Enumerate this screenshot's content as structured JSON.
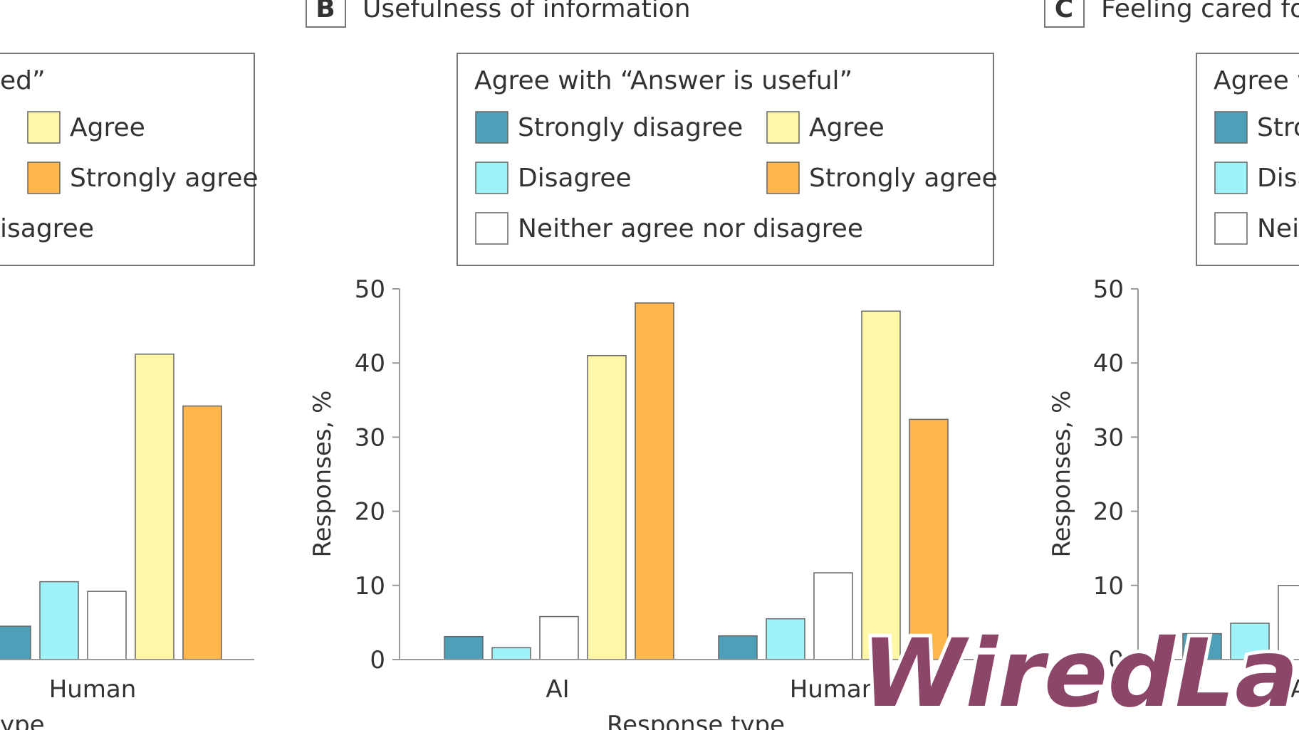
{
  "colors": {
    "strongly_disagree": "#4e9fb7",
    "disagree": "#9ff1fa",
    "neither": "#ffffff",
    "agree": "#fff7a7",
    "strongly_agree": "#ffb74d",
    "watermark": "#8b4668"
  },
  "watermark": {
    "text": "WiredLabz"
  },
  "chart_data": [
    {
      "type": "bar",
      "panel": "A",
      "title": "",
      "legend_title_fragment": "ed”",
      "legend_entries": [
        "Agree",
        "Strongly agree",
        "isagree"
      ],
      "categories": [
        "Human"
      ],
      "xlabel": "ype",
      "ylabel": "",
      "ylim": [
        0,
        50
      ],
      "series": [
        {
          "name": "Strongly disagree",
          "values": [
            4.5
          ]
        },
        {
          "name": "Disagree",
          "values": [
            10.5
          ]
        },
        {
          "name": "Neither agree nor disagree",
          "values": [
            9.2
          ]
        },
        {
          "name": "Agree",
          "values": [
            41.2
          ]
        },
        {
          "name": "Strongly agree",
          "values": [
            34.2
          ]
        }
      ]
    },
    {
      "type": "bar",
      "panel": "B",
      "title": "Usefulness of information",
      "legend_title": "Agree with “Answer is useful”",
      "legend_entries": [
        "Strongly disagree",
        "Agree",
        "Disagree",
        "Strongly agree",
        "Neither agree nor disagree"
      ],
      "categories": [
        "AI",
        "Human"
      ],
      "xlabel": "Response type",
      "ylabel": "Responses, %",
      "ylim": [
        0,
        50
      ],
      "yticks": [
        "0",
        "10",
        "20",
        "30",
        "40",
        "50"
      ],
      "series": [
        {
          "name": "Strongly disagree",
          "values": [
            3.1,
            3.2
          ]
        },
        {
          "name": "Disagree",
          "values": [
            1.6,
            5.5
          ]
        },
        {
          "name": "Neither agree nor disagree",
          "values": [
            5.8,
            11.7
          ]
        },
        {
          "name": "Agree",
          "values": [
            41.0,
            47.0
          ]
        },
        {
          "name": "Strongly agree",
          "values": [
            48.1,
            32.4
          ]
        }
      ]
    },
    {
      "type": "bar",
      "panel": "C",
      "title": "Feeling cared fo",
      "legend_title_fragment": "Agree w",
      "legend_entries": [
        "Stro",
        "Disa",
        "Neit"
      ],
      "categories": [
        "A"
      ],
      "xlabel": "",
      "ylabel": "Responses, %",
      "ylim": [
        0,
        50
      ],
      "yticks": [
        "0",
        "10",
        "20",
        "30",
        "40",
        "50"
      ],
      "series": [
        {
          "name": "Strongly disagree",
          "values": [
            3.5
          ]
        },
        {
          "name": "Disagree",
          "values": [
            4.9
          ]
        },
        {
          "name": "Neither agree nor disagree",
          "values": [
            10.0
          ]
        }
      ]
    }
  ]
}
